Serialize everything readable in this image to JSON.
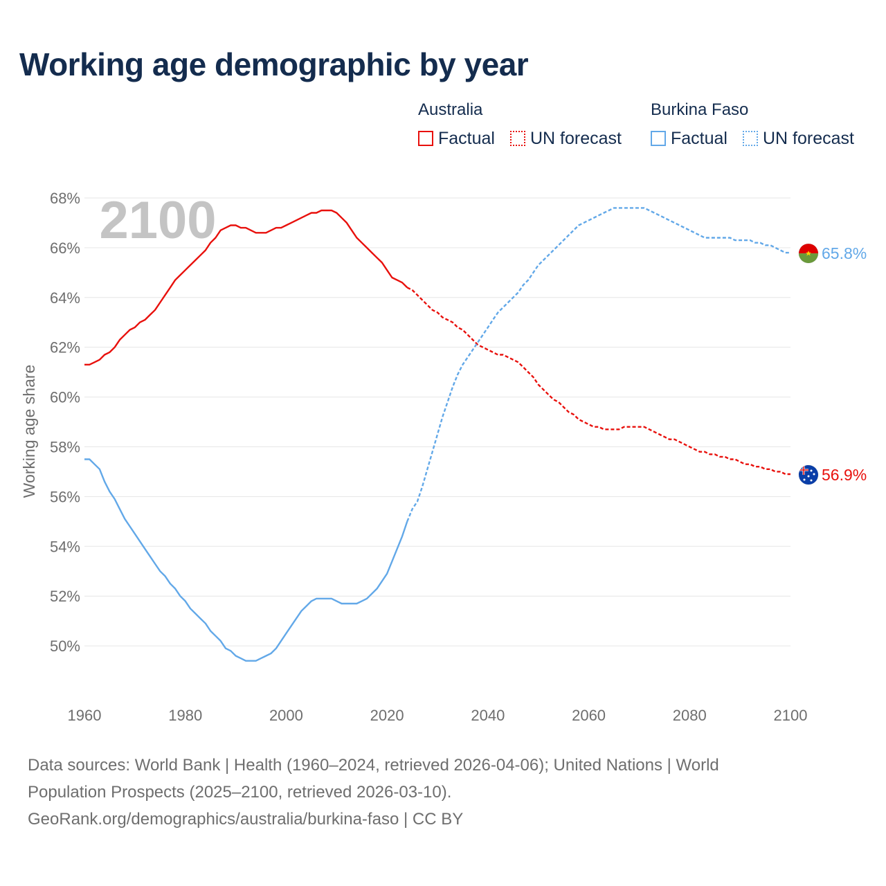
{
  "title": "Working age demographic by year",
  "legend": {
    "groups": [
      {
        "country": "Australia",
        "color": "#e8100c",
        "factual_label": "Factual",
        "forecast_label": "UN forecast"
      },
      {
        "country": "Burkina Faso",
        "color": "#62a8e8",
        "factual_label": "Factual",
        "forecast_label": "UN forecast"
      }
    ]
  },
  "chart_data": {
    "type": "line",
    "title": "Working age demographic by year",
    "xlabel": "",
    "ylabel": "Working age share",
    "xlim": [
      1960,
      2100
    ],
    "ylim": [
      48,
      68.5
    ],
    "x_ticks": [
      1960,
      1980,
      2000,
      2020,
      2040,
      2060,
      2080,
      2100
    ],
    "y_ticks": [
      50,
      52,
      54,
      56,
      58,
      60,
      62,
      64,
      66,
      68
    ],
    "y_tick_labels": [
      "50%",
      "52%",
      "54%",
      "56%",
      "58%",
      "60%",
      "62%",
      "64%",
      "66%",
      "68%"
    ],
    "year_watermark": "2100",
    "grid": true,
    "series": [
      {
        "name": "Australia",
        "color": "#e8100c",
        "end_label": "56.9%",
        "end_icon": "australia-flag-icon",
        "factual": [
          [
            1960,
            61.3
          ],
          [
            1961,
            61.3
          ],
          [
            1962,
            61.4
          ],
          [
            1963,
            61.5
          ],
          [
            1964,
            61.7
          ],
          [
            1965,
            61.8
          ],
          [
            1966,
            62.0
          ],
          [
            1967,
            62.3
          ],
          [
            1968,
            62.5
          ],
          [
            1969,
            62.7
          ],
          [
            1970,
            62.8
          ],
          [
            1971,
            63.0
          ],
          [
            1972,
            63.1
          ],
          [
            1973,
            63.3
          ],
          [
            1974,
            63.5
          ],
          [
            1975,
            63.8
          ],
          [
            1976,
            64.1
          ],
          [
            1977,
            64.4
          ],
          [
            1978,
            64.7
          ],
          [
            1979,
            64.9
          ],
          [
            1980,
            65.1
          ],
          [
            1981,
            65.3
          ],
          [
            1982,
            65.5
          ],
          [
            1983,
            65.7
          ],
          [
            1984,
            65.9
          ],
          [
            1985,
            66.2
          ],
          [
            1986,
            66.4
          ],
          [
            1987,
            66.7
          ],
          [
            1988,
            66.8
          ],
          [
            1989,
            66.9
          ],
          [
            1990,
            66.9
          ],
          [
            1991,
            66.8
          ],
          [
            1992,
            66.8
          ],
          [
            1993,
            66.7
          ],
          [
            1994,
            66.6
          ],
          [
            1995,
            66.6
          ],
          [
            1996,
            66.6
          ],
          [
            1997,
            66.7
          ],
          [
            1998,
            66.8
          ],
          [
            1999,
            66.8
          ],
          [
            2000,
            66.9
          ],
          [
            2001,
            67.0
          ],
          [
            2002,
            67.1
          ],
          [
            2003,
            67.2
          ],
          [
            2004,
            67.3
          ],
          [
            2005,
            67.4
          ],
          [
            2006,
            67.4
          ],
          [
            2007,
            67.5
          ],
          [
            2008,
            67.5
          ],
          [
            2009,
            67.5
          ],
          [
            2010,
            67.4
          ],
          [
            2011,
            67.2
          ],
          [
            2012,
            67.0
          ],
          [
            2013,
            66.7
          ],
          [
            2014,
            66.4
          ],
          [
            2015,
            66.2
          ],
          [
            2016,
            66.0
          ],
          [
            2017,
            65.8
          ],
          [
            2018,
            65.6
          ],
          [
            2019,
            65.4
          ],
          [
            2020,
            65.1
          ],
          [
            2021,
            64.8
          ],
          [
            2022,
            64.7
          ],
          [
            2023,
            64.6
          ],
          [
            2024,
            64.4
          ]
        ],
        "forecast": [
          [
            2024,
            64.4
          ],
          [
            2025,
            64.3
          ],
          [
            2026,
            64.1
          ],
          [
            2027,
            63.9
          ],
          [
            2028,
            63.7
          ],
          [
            2029,
            63.5
          ],
          [
            2030,
            63.4
          ],
          [
            2031,
            63.2
          ],
          [
            2032,
            63.1
          ],
          [
            2033,
            63.0
          ],
          [
            2034,
            62.8
          ],
          [
            2035,
            62.7
          ],
          [
            2036,
            62.5
          ],
          [
            2037,
            62.3
          ],
          [
            2038,
            62.1
          ],
          [
            2039,
            62.0
          ],
          [
            2040,
            61.9
          ],
          [
            2041,
            61.8
          ],
          [
            2042,
            61.7
          ],
          [
            2043,
            61.7
          ],
          [
            2044,
            61.6
          ],
          [
            2045,
            61.5
          ],
          [
            2046,
            61.4
          ],
          [
            2047,
            61.2
          ],
          [
            2048,
            61.0
          ],
          [
            2049,
            60.8
          ],
          [
            2050,
            60.5
          ],
          [
            2051,
            60.3
          ],
          [
            2052,
            60.1
          ],
          [
            2053,
            59.9
          ],
          [
            2054,
            59.8
          ],
          [
            2055,
            59.6
          ],
          [
            2056,
            59.4
          ],
          [
            2057,
            59.3
          ],
          [
            2058,
            59.1
          ],
          [
            2059,
            59.0
          ],
          [
            2060,
            58.9
          ],
          [
            2061,
            58.8
          ],
          [
            2062,
            58.8
          ],
          [
            2063,
            58.7
          ],
          [
            2064,
            58.7
          ],
          [
            2065,
            58.7
          ],
          [
            2066,
            58.7
          ],
          [
            2067,
            58.8
          ],
          [
            2068,
            58.8
          ],
          [
            2069,
            58.8
          ],
          [
            2070,
            58.8
          ],
          [
            2071,
            58.8
          ],
          [
            2072,
            58.7
          ],
          [
            2073,
            58.6
          ],
          [
            2074,
            58.5
          ],
          [
            2075,
            58.4
          ],
          [
            2076,
            58.3
          ],
          [
            2077,
            58.3
          ],
          [
            2078,
            58.2
          ],
          [
            2079,
            58.1
          ],
          [
            2080,
            58.0
          ],
          [
            2081,
            57.9
          ],
          [
            2082,
            57.8
          ],
          [
            2083,
            57.8
          ],
          [
            2084,
            57.7
          ],
          [
            2085,
            57.7
          ],
          [
            2086,
            57.6
          ],
          [
            2087,
            57.6
          ],
          [
            2088,
            57.5
          ],
          [
            2089,
            57.5
          ],
          [
            2090,
            57.4
          ],
          [
            2091,
            57.3
          ],
          [
            2092,
            57.3
          ],
          [
            2093,
            57.2
          ],
          [
            2094,
            57.2
          ],
          [
            2095,
            57.1
          ],
          [
            2096,
            57.1
          ],
          [
            2097,
            57.0
          ],
          [
            2098,
            57.0
          ],
          [
            2099,
            56.9
          ],
          [
            2100,
            56.9
          ]
        ]
      },
      {
        "name": "Burkina Faso",
        "color": "#62a8e8",
        "end_label": "65.8%",
        "end_icon": "burkina-faso-flag-icon",
        "factual": [
          [
            1960,
            57.5
          ],
          [
            1961,
            57.5
          ],
          [
            1962,
            57.3
          ],
          [
            1963,
            57.1
          ],
          [
            1964,
            56.6
          ],
          [
            1965,
            56.2
          ],
          [
            1966,
            55.9
          ],
          [
            1967,
            55.5
          ],
          [
            1968,
            55.1
          ],
          [
            1969,
            54.8
          ],
          [
            1970,
            54.5
          ],
          [
            1971,
            54.2
          ],
          [
            1972,
            53.9
          ],
          [
            1973,
            53.6
          ],
          [
            1974,
            53.3
          ],
          [
            1975,
            53.0
          ],
          [
            1976,
            52.8
          ],
          [
            1977,
            52.5
          ],
          [
            1978,
            52.3
          ],
          [
            1979,
            52.0
          ],
          [
            1980,
            51.8
          ],
          [
            1981,
            51.5
          ],
          [
            1982,
            51.3
          ],
          [
            1983,
            51.1
          ],
          [
            1984,
            50.9
          ],
          [
            1985,
            50.6
          ],
          [
            1986,
            50.4
          ],
          [
            1987,
            50.2
          ],
          [
            1988,
            49.9
          ],
          [
            1989,
            49.8
          ],
          [
            1990,
            49.6
          ],
          [
            1991,
            49.5
          ],
          [
            1992,
            49.4
          ],
          [
            1993,
            49.4
          ],
          [
            1994,
            49.4
          ],
          [
            1995,
            49.5
          ],
          [
            1996,
            49.6
          ],
          [
            1997,
            49.7
          ],
          [
            1998,
            49.9
          ],
          [
            1999,
            50.2
          ],
          [
            2000,
            50.5
          ],
          [
            2001,
            50.8
          ],
          [
            2002,
            51.1
          ],
          [
            2003,
            51.4
          ],
          [
            2004,
            51.6
          ],
          [
            2005,
            51.8
          ],
          [
            2006,
            51.9
          ],
          [
            2007,
            51.9
          ],
          [
            2008,
            51.9
          ],
          [
            2009,
            51.9
          ],
          [
            2010,
            51.8
          ],
          [
            2011,
            51.7
          ],
          [
            2012,
            51.7
          ],
          [
            2013,
            51.7
          ],
          [
            2014,
            51.7
          ],
          [
            2015,
            51.8
          ],
          [
            2016,
            51.9
          ],
          [
            2017,
            52.1
          ],
          [
            2018,
            52.3
          ],
          [
            2019,
            52.6
          ],
          [
            2020,
            52.9
          ],
          [
            2021,
            53.4
          ],
          [
            2022,
            53.9
          ],
          [
            2023,
            54.4
          ],
          [
            2024,
            55.0
          ]
        ],
        "forecast": [
          [
            2024,
            55.0
          ],
          [
            2025,
            55.5
          ],
          [
            2026,
            55.8
          ],
          [
            2027,
            56.4
          ],
          [
            2028,
            57.1
          ],
          [
            2029,
            57.8
          ],
          [
            2030,
            58.5
          ],
          [
            2031,
            59.2
          ],
          [
            2032,
            59.8
          ],
          [
            2033,
            60.4
          ],
          [
            2034,
            60.9
          ],
          [
            2035,
            61.3
          ],
          [
            2036,
            61.6
          ],
          [
            2037,
            61.9
          ],
          [
            2038,
            62.2
          ],
          [
            2039,
            62.5
          ],
          [
            2040,
            62.8
          ],
          [
            2041,
            63.1
          ],
          [
            2042,
            63.4
          ],
          [
            2043,
            63.6
          ],
          [
            2044,
            63.8
          ],
          [
            2045,
            64.0
          ],
          [
            2046,
            64.2
          ],
          [
            2047,
            64.5
          ],
          [
            2048,
            64.7
          ],
          [
            2049,
            65.0
          ],
          [
            2050,
            65.3
          ],
          [
            2051,
            65.5
          ],
          [
            2052,
            65.7
          ],
          [
            2053,
            65.9
          ],
          [
            2054,
            66.1
          ],
          [
            2055,
            66.3
          ],
          [
            2056,
            66.5
          ],
          [
            2057,
            66.7
          ],
          [
            2058,
            66.9
          ],
          [
            2059,
            67.0
          ],
          [
            2060,
            67.1
          ],
          [
            2061,
            67.2
          ],
          [
            2062,
            67.3
          ],
          [
            2063,
            67.4
          ],
          [
            2064,
            67.5
          ],
          [
            2065,
            67.6
          ],
          [
            2066,
            67.6
          ],
          [
            2067,
            67.6
          ],
          [
            2068,
            67.6
          ],
          [
            2069,
            67.6
          ],
          [
            2070,
            67.6
          ],
          [
            2071,
            67.6
          ],
          [
            2072,
            67.5
          ],
          [
            2073,
            67.4
          ],
          [
            2074,
            67.3
          ],
          [
            2075,
            67.2
          ],
          [
            2076,
            67.1
          ],
          [
            2077,
            67.0
          ],
          [
            2078,
            66.9
          ],
          [
            2079,
            66.8
          ],
          [
            2080,
            66.7
          ],
          [
            2081,
            66.6
          ],
          [
            2082,
            66.5
          ],
          [
            2083,
            66.4
          ],
          [
            2084,
            66.4
          ],
          [
            2085,
            66.4
          ],
          [
            2086,
            66.4
          ],
          [
            2087,
            66.4
          ],
          [
            2088,
            66.4
          ],
          [
            2089,
            66.3
          ],
          [
            2090,
            66.3
          ],
          [
            2091,
            66.3
          ],
          [
            2092,
            66.3
          ],
          [
            2093,
            66.2
          ],
          [
            2094,
            66.2
          ],
          [
            2095,
            66.1
          ],
          [
            2096,
            66.1
          ],
          [
            2097,
            66.0
          ],
          [
            2098,
            65.9
          ],
          [
            2099,
            65.8
          ],
          [
            2100,
            65.8
          ]
        ]
      }
    ]
  },
  "footer": {
    "line1": "Data sources: World Bank | Health (1960–2024, retrieved 2026-04-06); United Nations | World",
    "line2": "Population Prospects (2025–2100, retrieved 2026-03-10).",
    "line3": "GeoRank.org/demographics/australia/burkina-faso | CC BY"
  }
}
